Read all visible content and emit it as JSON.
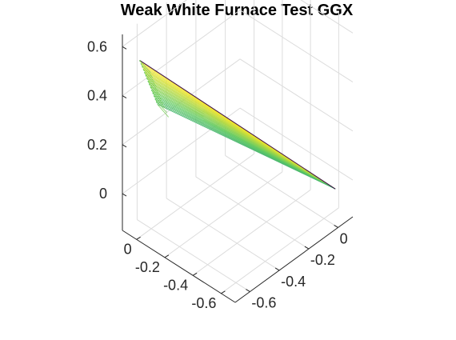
{
  "chart_data": {
    "type": "surface-mesh",
    "title": "Weak White Furnace Test GGX",
    "xlabel": "",
    "ylabel": "",
    "zlabel": "",
    "xlim": [
      -0.7,
      0.1
    ],
    "ylim": [
      -0.7,
      0.1
    ],
    "zlim": [
      -0.15,
      0.65
    ],
    "x_ticks": [
      {
        "value": -0.6,
        "label": "-0.6"
      },
      {
        "value": -0.4,
        "label": "-0.4"
      },
      {
        "value": -0.2,
        "label": "-0.2"
      },
      {
        "value": 0,
        "label": "0"
      }
    ],
    "y_ticks": [
      {
        "value": -0.6,
        "label": "-0.6"
      },
      {
        "value": -0.4,
        "label": "-0.4"
      },
      {
        "value": -0.2,
        "label": "-0.2"
      },
      {
        "value": 0,
        "label": "0"
      }
    ],
    "z_ticks": [
      {
        "value": 0,
        "label": "0"
      },
      {
        "value": 0.2,
        "label": "0.2"
      },
      {
        "value": 0.4,
        "label": "0.4"
      },
      {
        "value": 0.6,
        "label": "0.6"
      }
    ],
    "grid": true,
    "colormap": "viridis",
    "mesh": {
      "apex": {
        "x": 0,
        "y": -0.68,
        "z": 0
      },
      "upper_edge": {
        "from": {
          "x": -0.64,
          "y": 0.04,
          "z": 0.54
        },
        "to": {
          "x": 0,
          "y": -0.68,
          "z": 0
        }
      },
      "lower_edge": {
        "from": {
          "x": -0.51,
          "y": 0.05,
          "z": 0.3
        },
        "to": {
          "x": 0,
          "y": -0.68,
          "z": 0
        }
      },
      "line_count": 30
    }
  },
  "colors": {
    "colormap_start": "#3b0f4f",
    "colormap_mid": "#21918c",
    "colormap_green": "#5ec962",
    "colormap_end": "#fde725",
    "axis": "#262626",
    "grid": "#dcdcdc"
  }
}
